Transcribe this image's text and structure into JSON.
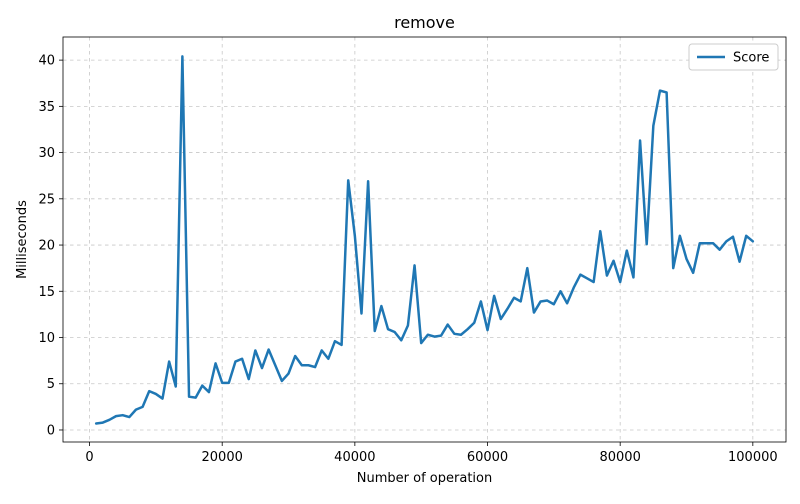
{
  "chart_data": {
    "type": "line",
    "title": "remove",
    "xlabel": "Number of operation",
    "ylabel": "Milliseconds",
    "xlim": [
      -4000,
      105000
    ],
    "ylim": [
      -1.3,
      42.5
    ],
    "xticks": [
      0,
      20000,
      40000,
      60000,
      80000,
      100000
    ],
    "xtick_labels": [
      "0",
      "20000",
      "40000",
      "60000",
      "80000",
      "100000"
    ],
    "yticks": [
      0,
      5,
      10,
      15,
      20,
      25,
      30,
      35,
      40
    ],
    "ytick_labels": [
      "0",
      "5",
      "10",
      "15",
      "20",
      "25",
      "30",
      "35",
      "40"
    ],
    "grid": true,
    "legend_position": "top-right",
    "series": [
      {
        "name": "Score",
        "color": "#1f77b4",
        "x": [
          1000,
          2000,
          3000,
          4000,
          5000,
          6000,
          7000,
          8000,
          9000,
          10000,
          11000,
          12000,
          13000,
          14000,
          15000,
          16000,
          17000,
          18000,
          19000,
          20000,
          21000,
          22000,
          23000,
          24000,
          25000,
          26000,
          27000,
          28000,
          29000,
          30000,
          31000,
          32000,
          33000,
          34000,
          35000,
          36000,
          37000,
          38000,
          39000,
          40000,
          41000,
          42000,
          43000,
          44000,
          45000,
          46000,
          47000,
          48000,
          49000,
          50000,
          51000,
          52000,
          53000,
          54000,
          55000,
          56000,
          57000,
          58000,
          59000,
          60000,
          61000,
          62000,
          63000,
          64000,
          65000,
          66000,
          67000,
          68000,
          69000,
          70000,
          71000,
          72000,
          73000,
          74000,
          75000,
          76000,
          77000,
          78000,
          79000,
          80000,
          81000,
          82000,
          83000,
          84000,
          85000,
          86000,
          87000,
          88000,
          89000,
          90000,
          91000,
          92000,
          93000,
          94000,
          95000,
          96000,
          97000,
          98000,
          99000,
          100000
        ],
        "values": [
          0.7,
          0.8,
          1.1,
          1.5,
          1.6,
          1.4,
          2.2,
          2.5,
          4.2,
          3.9,
          3.4,
          7.4,
          4.7,
          40.4,
          3.6,
          3.5,
          4.8,
          4.1,
          7.2,
          5.1,
          5.1,
          7.4,
          7.7,
          5.5,
          8.6,
          6.7,
          8.7,
          7.0,
          5.3,
          6.1,
          8.0,
          7.0,
          7.0,
          6.8,
          8.6,
          7.7,
          9.6,
          9.2,
          27.0,
          21.0,
          12.6,
          26.9,
          10.7,
          13.4,
          10.9,
          10.6,
          9.7,
          11.3,
          17.8,
          9.4,
          10.3,
          10.1,
          10.2,
          11.4,
          10.4,
          10.3,
          10.9,
          11.6,
          13.9,
          10.8,
          14.5,
          12.0,
          13.1,
          14.3,
          13.9,
          17.5,
          12.7,
          13.9,
          14.0,
          13.6,
          15.0,
          13.7,
          15.4,
          16.8,
          16.4,
          16.0,
          21.5,
          16.7,
          18.3,
          16.0,
          19.4,
          16.5,
          31.3,
          20.1,
          32.9,
          36.7,
          36.5,
          17.5,
          21.0,
          18.5,
          17.0,
          20.2,
          20.2,
          20.2,
          19.5,
          20.4,
          20.9,
          18.2,
          21.0,
          20.4
        ]
      }
    ]
  }
}
